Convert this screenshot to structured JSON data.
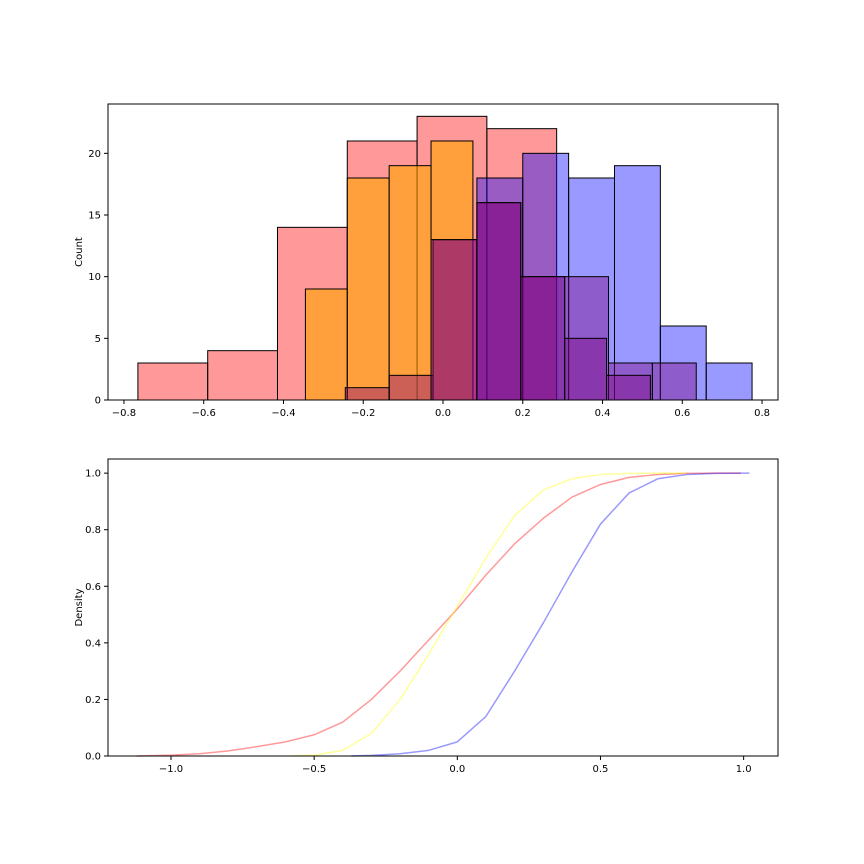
{
  "chart_data": [
    {
      "type": "bar",
      "subtype": "histogram",
      "ylabel": "Count",
      "xlabel": "",
      "xlim": [
        -0.84,
        0.84
      ],
      "ylim": [
        0,
        24
      ],
      "xticks": [
        "−0.8",
        "−0.6",
        "−0.4",
        "−0.2",
        "0.0",
        "0.2",
        "0.4",
        "0.6",
        "0.8"
      ],
      "xtick_values": [
        -0.8,
        -0.6,
        -0.4,
        -0.2,
        0.0,
        0.2,
        0.4,
        0.6,
        0.8
      ],
      "yticks": [
        "0",
        "5",
        "10",
        "15",
        "20"
      ],
      "ytick_values": [
        0,
        5,
        10,
        15,
        20
      ],
      "series": [
        {
          "color": "#ff0000",
          "opacity": 0.4,
          "bin_edges": [
            -0.765,
            -0.59,
            -0.415,
            -0.24,
            -0.065,
            0.11,
            0.285
          ],
          "counts": [
            3,
            4,
            14,
            21,
            23,
            22
          ]
        },
        {
          "color": "#0000ff",
          "opacity": 0.4,
          "bin_edges": [
            0.085,
            0.2,
            0.315,
            0.43,
            0.545,
            0.66,
            0.775
          ],
          "counts": [
            18,
            20,
            18,
            19,
            6,
            3
          ]
        },
        {
          "color": "#ffa500",
          "opacity": 0.6,
          "bin_edges": [
            -0.345,
            -0.24,
            -0.135,
            -0.03,
            0.075
          ],
          "counts": [
            9,
            18,
            19,
            21
          ]
        },
        {
          "color": "#800080",
          "opacity": 0.4,
          "bin_edges": [
            -0.245,
            -0.135,
            -0.025,
            0.085,
            0.195,
            0.305,
            0.415,
            0.525,
            0.635
          ],
          "counts": [
            1,
            2,
            13,
            16,
            10,
            10,
            3,
            3
          ]
        },
        {
          "color": "#800080",
          "opacity": 0.4,
          "bin_edges": [
            -0.03,
            0.085,
            0.195,
            0.305,
            0.41,
            0.52
          ],
          "counts": [
            13,
            16,
            10,
            5,
            2
          ]
        }
      ]
    },
    {
      "type": "line",
      "subtype": "cumulative kde",
      "ylabel": "Density",
      "xlabel": "",
      "xlim": [
        -1.22,
        1.12
      ],
      "ylim": [
        0,
        1.05
      ],
      "xticks": [
        "−1.0",
        "−0.5",
        "0.0",
        "0.5",
        "1.0"
      ],
      "xtick_values": [
        -1.0,
        -0.5,
        0.0,
        0.5,
        1.0
      ],
      "yticks": [
        "0.0",
        "0.2",
        "0.4",
        "0.6",
        "0.8",
        "1.0"
      ],
      "ytick_values": [
        0.0,
        0.2,
        0.4,
        0.6,
        0.8,
        1.0
      ],
      "series": [
        {
          "color": "#ff0000",
          "opacity": 0.4,
          "x": [
            -1.12,
            -1.0,
            -0.9,
            -0.8,
            -0.7,
            -0.6,
            -0.5,
            -0.4,
            -0.3,
            -0.2,
            -0.1,
            0.0,
            0.1,
            0.2,
            0.3,
            0.4,
            0.5,
            0.6,
            0.7,
            0.8,
            0.9,
            0.99
          ],
          "y": [
            0.0,
            0.003,
            0.008,
            0.018,
            0.033,
            0.05,
            0.075,
            0.12,
            0.2,
            0.3,
            0.41,
            0.52,
            0.64,
            0.75,
            0.84,
            0.915,
            0.96,
            0.985,
            0.995,
            0.999,
            1.0,
            1.0
          ]
        },
        {
          "color": "#ffff00",
          "opacity": 0.4,
          "x": [
            -0.58,
            -0.5,
            -0.4,
            -0.3,
            -0.2,
            -0.1,
            0.0,
            0.1,
            0.2,
            0.3,
            0.4,
            0.5,
            0.6,
            0.7,
            0.8
          ],
          "y": [
            0.0,
            0.003,
            0.02,
            0.08,
            0.2,
            0.36,
            0.53,
            0.7,
            0.85,
            0.94,
            0.98,
            0.995,
            0.999,
            1.0,
            1.0
          ]
        },
        {
          "color": "#0000ff",
          "opacity": 0.4,
          "x": [
            -0.37,
            -0.3,
            -0.2,
            -0.1,
            0.0,
            0.1,
            0.2,
            0.3,
            0.4,
            0.5,
            0.6,
            0.7,
            0.8,
            0.9,
            1.02
          ],
          "y": [
            0.0,
            0.002,
            0.008,
            0.02,
            0.05,
            0.14,
            0.3,
            0.47,
            0.65,
            0.82,
            0.93,
            0.98,
            0.995,
            0.999,
            1.0
          ]
        }
      ]
    }
  ]
}
